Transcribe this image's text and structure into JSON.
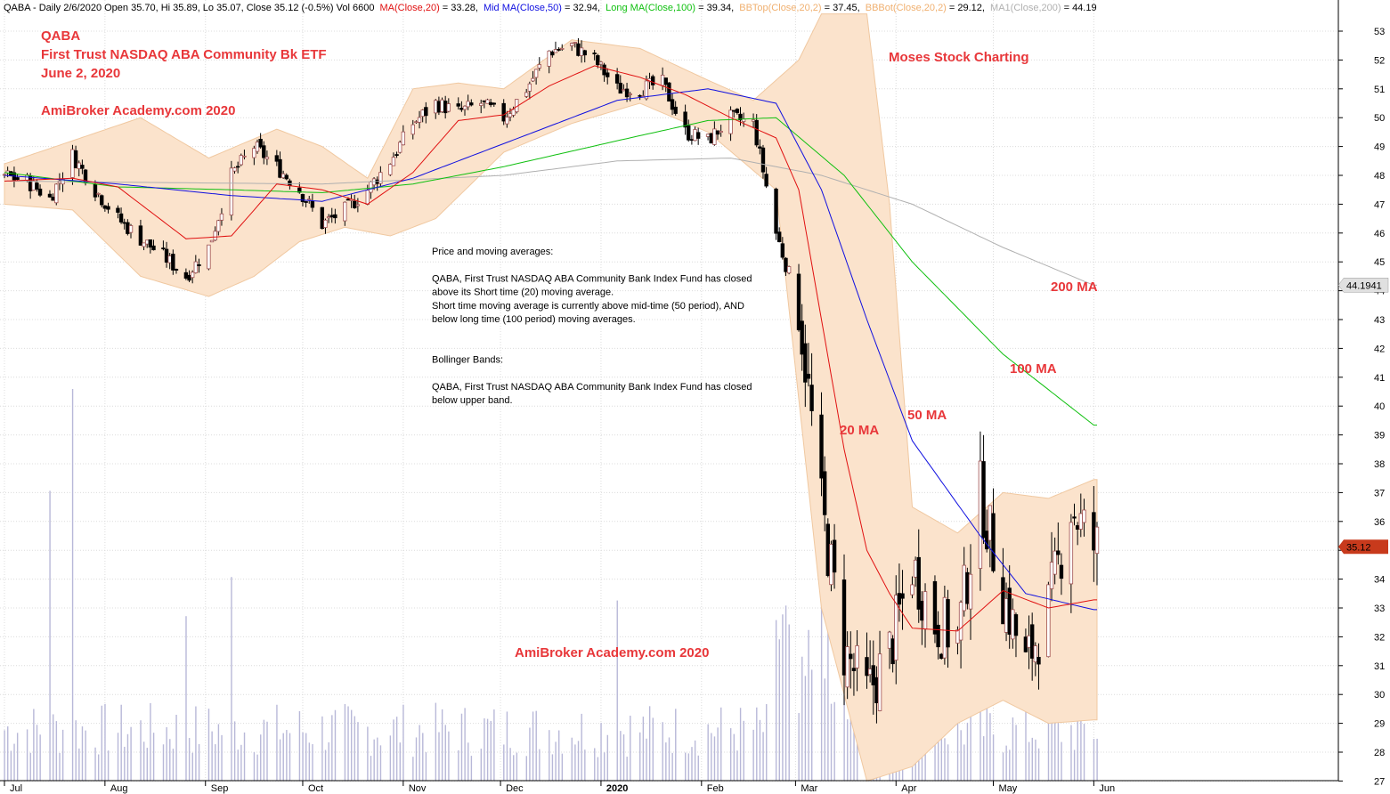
{
  "header": {
    "prefix": "QABA - Daily 2/6/2020 Open 35.70, Hi 35.89, Lo 35.07, Close 35.12 (-0.5%) Vol 6600",
    "ma20_label": "MA(Close,20)",
    "ma20_value": " = 33.28,",
    "ma50_label": "Mid MA(Close,50)",
    "ma50_value": " = 32.94,",
    "ma100_label": "Long MA(Close,100)",
    "ma100_value": " = 39.34,",
    "bbtop_label": "BBTop(Close,20,2)",
    "bbtop_value": " = 37.45,",
    "bbbot_label": "BBBot(Close,20,2)",
    "bbbot_value": " = 29.12,",
    "ma200_label": "MA1(Close,200)",
    "ma200_value": " = 44.19"
  },
  "title": {
    "line1": "QABA",
    "line2": "First Trust NASDAQ ABA Community Bk ETF",
    "line3": "June 2, 2020",
    "brand_top": "AmiBroker Academy.com  2020",
    "brand_right": "Moses Stock Charting",
    "brand_bottom": "AmiBroker Academy.com  2020"
  },
  "annotation": {
    "lines": [
      "Price and moving averages:",
      "",
      "QABA, First Trust NASDAQ ABA Community Bank Index Fund has closed",
      "above its Short time (20) moving average.",
      "Short time moving average is currently above mid-time (50 period), AND",
      "below long time (100 period) moving averages.",
      "",
      "",
      "Bollinger Bands:",
      "",
      "QABA, First Trust NASDAQ ABA Community Bank Index Fund  has closed",
      "below upper band."
    ]
  },
  "ma_labels": {
    "ma200": "200 MA",
    "ma100": "100 MA",
    "ma50": "50 MA",
    "ma20": "20 MA"
  },
  "colors": {
    "ma20": "#e01010",
    "ma50": "#1010e0",
    "ma100": "#10c010",
    "ma200": "#b0b0b0",
    "bb_fill": "#fbe3cc",
    "bb_line": "#f0c8a0",
    "volume": "#b8b8d8",
    "candle_up": "#a05050",
    "candle_down": "#000000",
    "label_red": "#e8373a",
    "price_tag": "#c83a1c",
    "ma200_tag": "#e0e0e0"
  },
  "chart_data": {
    "type": "candlestick",
    "symbol": "QABA",
    "interval": "Daily",
    "x_tick_labels": [
      "Jul",
      "Aug",
      "Sep",
      "Oct",
      "Nov",
      "Dec",
      "2020",
      "Feb",
      "Mar",
      "Apr",
      "May",
      "Jun"
    ],
    "y_ticks": [
      27,
      28,
      29,
      30,
      31,
      32,
      33,
      34,
      35,
      36,
      37,
      38,
      39,
      40,
      41,
      42,
      43,
      44,
      45,
      46,
      47,
      48,
      49,
      50,
      51,
      52,
      53
    ],
    "ylim": [
      26.8,
      53.6
    ],
    "grid": true,
    "last_close": "35.12",
    "ma200_last": "44.1941",
    "ma_last": {
      "ma20": 33.28,
      "ma50": 32.94,
      "ma100": 39.34,
      "ma200": 44.19,
      "bbtop": 37.45,
      "bbbot": 29.12
    },
    "price_path": [
      [
        "2019-07-01",
        48.0
      ],
      [
        "2019-07-08",
        47.8
      ],
      [
        "2019-07-15",
        47.2
      ],
      [
        "2019-07-22",
        48.7
      ],
      [
        "2019-07-29",
        47.5
      ],
      [
        "2019-08-05",
        46.5
      ],
      [
        "2019-08-12",
        45.8
      ],
      [
        "2019-08-19",
        45.2
      ],
      [
        "2019-08-26",
        44.5
      ],
      [
        "2019-09-02",
        45.5
      ],
      [
        "2019-09-09",
        48.0
      ],
      [
        "2019-09-16",
        49.0
      ],
      [
        "2019-09-23",
        48.3
      ],
      [
        "2019-09-30",
        47.5
      ],
      [
        "2019-10-07",
        46.3
      ],
      [
        "2019-10-14",
        46.8
      ],
      [
        "2019-10-21",
        47.5
      ],
      [
        "2019-10-28",
        48.5
      ],
      [
        "2019-11-04",
        49.8
      ],
      [
        "2019-11-11",
        50.5
      ],
      [
        "2019-11-18",
        50.2
      ],
      [
        "2019-11-25",
        50.5
      ],
      [
        "2019-12-02",
        50.0
      ],
      [
        "2019-12-09",
        51.0
      ],
      [
        "2019-12-16",
        52.3
      ],
      [
        "2019-12-23",
        52.5
      ],
      [
        "2019-12-30",
        52.0
      ],
      [
        "2020-01-06",
        51.0
      ],
      [
        "2020-01-13",
        51.0
      ],
      [
        "2020-01-20",
        51.2
      ],
      [
        "2020-01-27",
        49.5
      ],
      [
        "2020-02-03",
        49.2
      ],
      [
        "2020-02-10",
        50.0
      ],
      [
        "2020-02-17",
        49.8
      ],
      [
        "2020-02-24",
        46.0
      ],
      [
        "2020-03-02",
        43.5
      ],
      [
        "2020-03-09",
        36.5
      ],
      [
        "2020-03-16",
        31.5
      ],
      [
        "2020-03-23",
        30.0
      ],
      [
        "2020-03-30",
        31.5
      ],
      [
        "2020-04-06",
        34.5
      ],
      [
        "2020-04-13",
        32.5
      ],
      [
        "2020-04-20",
        32.0
      ],
      [
        "2020-04-27",
        37.0
      ],
      [
        "2020-05-04",
        33.5
      ],
      [
        "2020-05-11",
        31.0
      ],
      [
        "2020-05-18",
        33.0
      ],
      [
        "2020-05-25",
        36.5
      ],
      [
        "2020-06-01",
        35.12
      ]
    ],
    "series": [
      {
        "name": "MA(Close,20)",
        "key": "ma20",
        "points": [
          [
            "2019-07-01",
            47.8
          ],
          [
            "2019-07-22",
            47.9
          ],
          [
            "2019-08-05",
            47.6
          ],
          [
            "2019-08-26",
            45.8
          ],
          [
            "2019-09-09",
            45.9
          ],
          [
            "2019-09-23",
            47.7
          ],
          [
            "2019-10-07",
            47.5
          ],
          [
            "2019-10-21",
            47.0
          ],
          [
            "2019-11-04",
            48.1
          ],
          [
            "2019-11-18",
            49.9
          ],
          [
            "2019-12-02",
            50.1
          ],
          [
            "2019-12-16",
            51.1
          ],
          [
            "2019-12-30",
            51.8
          ],
          [
            "2020-01-13",
            51.4
          ],
          [
            "2020-01-27",
            50.8
          ],
          [
            "2020-02-10",
            50.0
          ],
          [
            "2020-02-24",
            49.3
          ],
          [
            "2020-03-02",
            47.5
          ],
          [
            "2020-03-09",
            43.0
          ],
          [
            "2020-03-16",
            38.5
          ],
          [
            "2020-03-23",
            35.0
          ],
          [
            "2020-03-30",
            33.5
          ],
          [
            "2020-04-06",
            32.3
          ],
          [
            "2020-04-20",
            32.2
          ],
          [
            "2020-05-04",
            33.6
          ],
          [
            "2020-05-18",
            33.0
          ],
          [
            "2020-06-01",
            33.28
          ]
        ]
      },
      {
        "name": "Mid MA(Close,50)",
        "key": "ma50",
        "points": [
          [
            "2019-07-01",
            48.0
          ],
          [
            "2019-08-05",
            47.7
          ],
          [
            "2019-09-09",
            47.3
          ],
          [
            "2019-10-07",
            47.1
          ],
          [
            "2019-11-04",
            47.9
          ],
          [
            "2019-12-02",
            49.1
          ],
          [
            "2020-01-06",
            50.6
          ],
          [
            "2020-02-03",
            51.0
          ],
          [
            "2020-02-24",
            50.5
          ],
          [
            "2020-03-09",
            47.5
          ],
          [
            "2020-03-23",
            43.0
          ],
          [
            "2020-04-06",
            38.8
          ],
          [
            "2020-04-27",
            35.5
          ],
          [
            "2020-05-11",
            33.5
          ],
          [
            "2020-06-01",
            32.94
          ]
        ]
      },
      {
        "name": "Long MA(Close,100)",
        "key": "ma100",
        "points": [
          [
            "2019-07-01",
            48.1
          ],
          [
            "2019-08-05",
            47.6
          ],
          [
            "2019-09-09",
            47.5
          ],
          [
            "2019-10-07",
            47.4
          ],
          [
            "2019-11-04",
            47.7
          ],
          [
            "2019-12-02",
            48.3
          ],
          [
            "2020-01-06",
            49.2
          ],
          [
            "2020-02-03",
            49.9
          ],
          [
            "2020-02-24",
            50.0
          ],
          [
            "2020-03-16",
            48.0
          ],
          [
            "2020-04-06",
            45.0
          ],
          [
            "2020-05-04",
            41.8
          ],
          [
            "2020-06-01",
            39.34
          ]
        ]
      },
      {
        "name": "MA1(Close,200)",
        "key": "ma200",
        "points": [
          [
            "2019-07-01",
            47.8
          ],
          [
            "2019-10-07",
            47.7
          ],
          [
            "2019-12-02",
            48.0
          ],
          [
            "2020-01-06",
            48.5
          ],
          [
            "2020-02-10",
            48.6
          ],
          [
            "2020-03-09",
            48.0
          ],
          [
            "2020-04-06",
            47.0
          ],
          [
            "2020-05-04",
            45.5
          ],
          [
            "2020-06-01",
            44.19
          ]
        ]
      },
      {
        "name": "BBTop(Close,20,2)",
        "key": "bbtop",
        "points": [
          [
            "2019-07-01",
            48.4
          ],
          [
            "2019-07-22",
            49.2
          ],
          [
            "2019-08-12",
            50.0
          ],
          [
            "2019-09-02",
            48.6
          ],
          [
            "2019-09-23",
            49.6
          ],
          [
            "2019-10-07",
            49.0
          ],
          [
            "2019-10-21",
            47.9
          ],
          [
            "2019-11-04",
            51.0
          ],
          [
            "2019-11-18",
            51.2
          ],
          [
            "2019-12-02",
            51.0
          ],
          [
            "2019-12-23",
            52.7
          ],
          [
            "2020-01-13",
            52.4
          ],
          [
            "2020-02-03",
            51.3
          ],
          [
            "2020-02-17",
            50.6
          ],
          [
            "2020-03-02",
            52.0
          ],
          [
            "2020-03-09",
            53.6
          ],
          [
            "2020-03-23",
            53.6
          ],
          [
            "2020-03-30",
            47.0
          ],
          [
            "2020-04-06",
            36.5
          ],
          [
            "2020-04-20",
            35.6
          ],
          [
            "2020-05-04",
            37.0
          ],
          [
            "2020-05-18",
            36.8
          ],
          [
            "2020-06-01",
            37.45
          ]
        ]
      },
      {
        "name": "BBBot(Close,20,2)",
        "key": "bbbot",
        "points": [
          [
            "2019-07-01",
            47.0
          ],
          [
            "2019-07-22",
            46.8
          ],
          [
            "2019-08-12",
            44.5
          ],
          [
            "2019-09-02",
            43.8
          ],
          [
            "2019-09-16",
            44.5
          ],
          [
            "2019-09-30",
            45.7
          ],
          [
            "2019-10-14",
            46.2
          ],
          [
            "2019-10-28",
            45.9
          ],
          [
            "2019-11-11",
            46.5
          ],
          [
            "2019-12-02",
            48.8
          ],
          [
            "2019-12-23",
            49.8
          ],
          [
            "2020-01-13",
            50.5
          ],
          [
            "2020-02-03",
            49.5
          ],
          [
            "2020-02-24",
            47.5
          ],
          [
            "2020-03-09",
            33.0
          ],
          [
            "2020-03-23",
            27.0
          ],
          [
            "2020-04-06",
            27.5
          ],
          [
            "2020-04-20",
            29.0
          ],
          [
            "2020-05-04",
            29.8
          ],
          [
            "2020-05-18",
            29.0
          ],
          [
            "2020-06-01",
            29.12
          ]
        ]
      }
    ],
    "volume_relative_peaks": [
      [
        "2019-07-22",
        1.0
      ],
      [
        "2019-07-15",
        0.74
      ],
      [
        "2019-09-09",
        0.52
      ],
      [
        "2019-08-26",
        0.42
      ],
      [
        "2020-01-06",
        0.46
      ],
      [
        "2020-02-24",
        0.41
      ],
      [
        "2020-03-09",
        0.6
      ],
      [
        "2020-03-16",
        0.55
      ]
    ]
  }
}
